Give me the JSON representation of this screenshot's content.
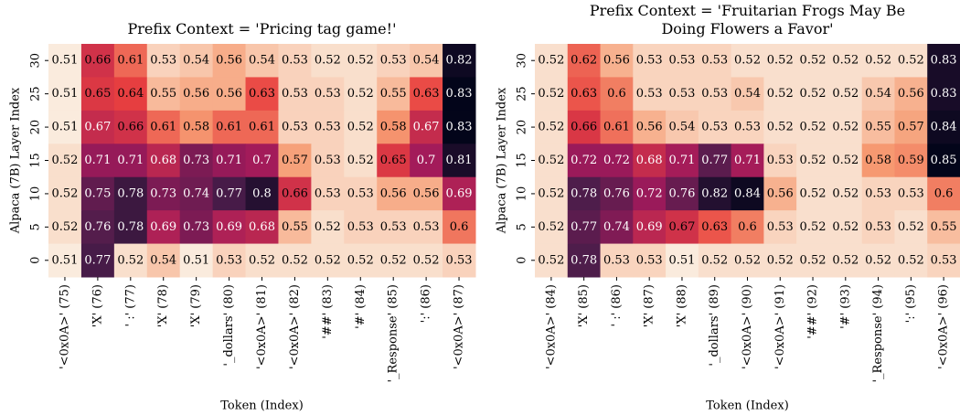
{
  "chart_data": [
    {
      "type": "heatmap",
      "title": "Prefix Context = 'Pricing tag game!'",
      "x_label": "Token (Index)",
      "y_label": "Alpaca (7B) Layer Index",
      "colormap": "rocket_r",
      "categories": [
        "'<0x0A>' (75)",
        "'X' (76)",
        "' :' (77)",
        "'X' (78)",
        "'X' (79)",
        "'_dollars' (80)",
        "'<0x0A>' (81)",
        "'<0x0A>' (82)",
        "'##' (83)",
        "'#' (84)",
        "'_Response' (85)",
        "':' (86)",
        "'<0x0A>' (87)"
      ],
      "rows": [
        30,
        25,
        20,
        15,
        10,
        5,
        0
      ],
      "values": [
        [
          0.51,
          0.66,
          0.61,
          0.53,
          0.54,
          0.56,
          0.54,
          0.53,
          0.52,
          0.52,
          0.53,
          0.54,
          0.82
        ],
        [
          0.51,
          0.65,
          0.64,
          0.55,
          0.56,
          0.56,
          0.63,
          0.53,
          0.53,
          0.52,
          0.55,
          0.63,
          0.83
        ],
        [
          0.51,
          0.67,
          0.66,
          0.61,
          0.58,
          0.61,
          0.61,
          0.53,
          0.53,
          0.52,
          0.58,
          0.67,
          0.83
        ],
        [
          0.52,
          0.71,
          0.71,
          0.68,
          0.73,
          0.71,
          0.7,
          0.57,
          0.53,
          0.52,
          0.65,
          0.7,
          0.81
        ],
        [
          0.52,
          0.75,
          0.78,
          0.73,
          0.74,
          0.77,
          0.8,
          0.66,
          0.53,
          0.53,
          0.56,
          0.56,
          0.69
        ],
        [
          0.52,
          0.76,
          0.78,
          0.69,
          0.73,
          0.69,
          0.68,
          0.55,
          0.52,
          0.53,
          0.53,
          0.53,
          0.6
        ],
        [
          0.51,
          0.77,
          0.52,
          0.54,
          0.51,
          0.53,
          0.52,
          0.52,
          0.52,
          0.52,
          0.52,
          0.52,
          0.53
        ]
      ]
    },
    {
      "type": "heatmap",
      "title": "Prefix Context = 'Fruitarian Frogs May Be\nDoing Flowers a Favor'",
      "x_label": "Token (Index)",
      "y_label": "Alpaca (7B) Layer Index",
      "colormap": "rocket_r",
      "categories": [
        "'<0x0A>' (84)",
        "'X' (85)",
        "' :' (86)",
        "'X' (87)",
        "'X' (88)",
        "'_dollars' (89)",
        "'<0x0A>' (90)",
        "'<0x0A>' (91)",
        "'##' (92)",
        "'#' (93)",
        "'_Response' (94)",
        "':' (95)",
        "'<0x0A>' (96)"
      ],
      "rows": [
        30,
        25,
        20,
        15,
        10,
        5,
        0
      ],
      "values": [
        [
          0.52,
          0.62,
          0.56,
          0.53,
          0.53,
          0.53,
          0.52,
          0.52,
          0.52,
          0.52,
          0.52,
          0.52,
          0.83
        ],
        [
          0.52,
          0.63,
          0.6,
          0.53,
          0.53,
          0.53,
          0.54,
          0.52,
          0.52,
          0.52,
          0.54,
          0.56,
          0.83
        ],
        [
          0.52,
          0.66,
          0.61,
          0.56,
          0.54,
          0.53,
          0.53,
          0.52,
          0.52,
          0.52,
          0.55,
          0.57,
          0.84
        ],
        [
          0.52,
          0.72,
          0.72,
          0.68,
          0.71,
          0.77,
          0.71,
          0.53,
          0.52,
          0.52,
          0.58,
          0.59,
          0.85
        ],
        [
          0.52,
          0.78,
          0.76,
          0.72,
          0.76,
          0.82,
          0.84,
          0.56,
          0.52,
          0.52,
          0.53,
          0.53,
          0.6
        ],
        [
          0.52,
          0.77,
          0.74,
          0.69,
          0.67,
          0.63,
          0.6,
          0.53,
          0.52,
          0.52,
          0.53,
          0.52,
          0.55
        ],
        [
          0.52,
          0.78,
          0.53,
          0.53,
          0.51,
          0.52,
          0.52,
          0.52,
          0.52,
          0.52,
          0.52,
          0.52,
          0.53
        ]
      ]
    }
  ]
}
